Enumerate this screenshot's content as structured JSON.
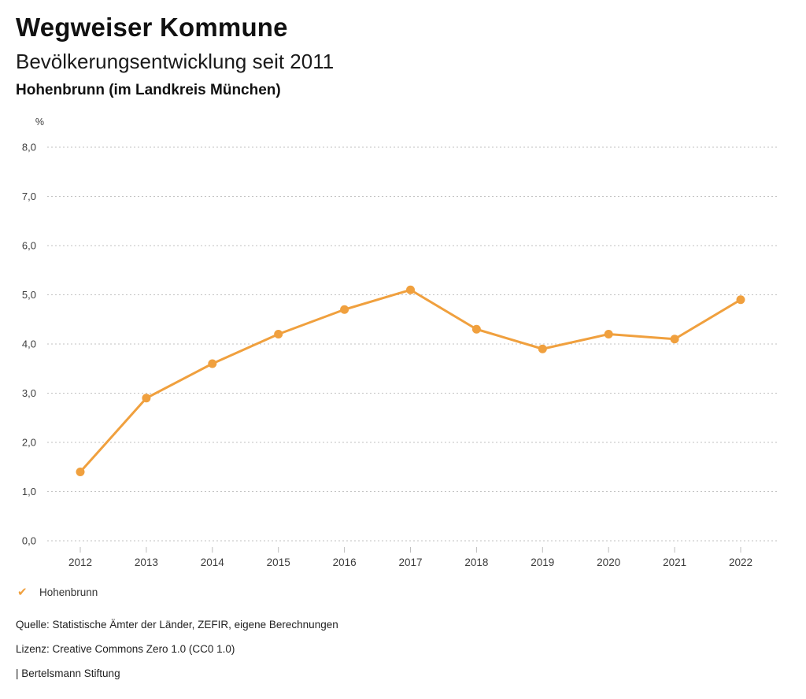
{
  "header": {
    "app_title": "Wegweiser Kommune",
    "chart_title": "Bevölkerungsentwicklung seit 2011",
    "location_subtitle": "Hohenbrunn (im Landkreis München)"
  },
  "chart_data": {
    "type": "line",
    "title": "Bevölkerungsentwicklung seit 2011",
    "subtitle": "Hohenbrunn (im Landkreis München)",
    "unit": "%",
    "categories": [
      "2012",
      "2013",
      "2014",
      "2015",
      "2016",
      "2017",
      "2018",
      "2019",
      "2020",
      "2021",
      "2022"
    ],
    "series": [
      {
        "name": "Hohenbrunn",
        "values": [
          1.4,
          2.9,
          3.6,
          4.2,
          4.7,
          5.1,
          4.3,
          3.9,
          4.2,
          4.1,
          4.9
        ],
        "color": "#F0A03E"
      }
    ],
    "ylim": [
      0,
      8
    ],
    "ytick_step": 1.0,
    "ytick_labels": [
      "0,0",
      "1,0",
      "2,0",
      "3,0",
      "4,0",
      "5,0",
      "6,0",
      "7,0",
      "8,0"
    ],
    "ylabel": "%",
    "xlabel": "",
    "grid": "horizontal-dotted",
    "legend_position": "bottom-left"
  },
  "legend": {
    "items": [
      {
        "label": "Hohenbrunn",
        "checked": true,
        "check_glyph": "✔",
        "color": "#F0A03E"
      }
    ]
  },
  "footer": {
    "source_line": "Quelle: Statistische Ämter der Länder, ZEFIR, eigene Berechnungen",
    "license_line": "Lizenz: Creative Commons Zero 1.0 (CC0 1.0)",
    "brand_line": "| Bertelsmann Stiftung"
  },
  "colors": {
    "series_orange": "#F0A03E",
    "gridline": "#C2C2C2",
    "tick": "#BDBDBD",
    "axis_text": "#3C3C3C",
    "title_text": "#111111",
    "footer_text": "#222222"
  }
}
